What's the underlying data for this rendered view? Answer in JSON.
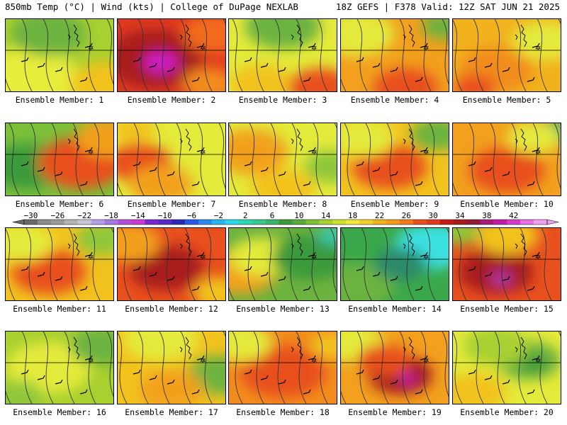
{
  "header": {
    "left": "850mb Temp (°C) | Wind (kts) | College of DuPage NEXLAB",
    "right": "18Z GEFS | F378 Valid: 12Z SAT JUN 21 2025"
  },
  "members": [
    {
      "label": "Ensemble Member: 1",
      "field": {
        "base": "#a8d030",
        "blobs": [
          [
            "#e8ec3a",
            0.2,
            0.85,
            0.5
          ],
          [
            "#f2c21e",
            0.95,
            0.9,
            0.35
          ],
          [
            "#6db33f",
            0.4,
            0.2,
            0.35
          ]
        ]
      }
    },
    {
      "label": "Ensemble Member: 2",
      "field": {
        "base": "#e03a20",
        "blobs": [
          [
            "#a81a1a",
            0.35,
            0.55,
            0.45
          ],
          [
            "#d21bc8",
            0.4,
            0.6,
            0.16
          ],
          [
            "#f26a1e",
            0.9,
            0.2,
            0.3
          ],
          [
            "#f28c1e",
            0.85,
            0.9,
            0.25
          ]
        ]
      }
    },
    {
      "label": "Ensemble Member: 3",
      "field": {
        "base": "#e4ea3a",
        "blobs": [
          [
            "#6db33f",
            0.5,
            0.1,
            0.35
          ],
          [
            "#f2c21e",
            0.3,
            0.9,
            0.3
          ],
          [
            "#e8501e",
            0.85,
            0.95,
            0.3
          ]
        ]
      }
    },
    {
      "label": "Ensemble Member: 4",
      "field": {
        "base": "#f2a01e",
        "blobs": [
          [
            "#e4ea3a",
            0.15,
            0.2,
            0.35
          ],
          [
            "#e8501e",
            0.6,
            0.95,
            0.3
          ],
          [
            "#6db33f",
            0.95,
            0.1,
            0.2
          ]
        ]
      }
    },
    {
      "label": "Ensemble Member: 5",
      "field": {
        "base": "#f2b21e",
        "blobs": [
          [
            "#f28c1e",
            0.4,
            0.7,
            0.35
          ],
          [
            "#e4ea3a",
            0.85,
            0.3,
            0.3
          ],
          [
            "#e8501e",
            0.2,
            0.95,
            0.2
          ]
        ]
      }
    },
    {
      "label": "Ensemble Member: 6",
      "field": {
        "base": "#7cc03a",
        "blobs": [
          [
            "#3a9a3a",
            0.2,
            0.6,
            0.35
          ],
          [
            "#e8501e",
            0.7,
            0.55,
            0.4
          ],
          [
            "#f2a01e",
            0.95,
            0.2,
            0.3
          ]
        ]
      }
    },
    {
      "label": "Ensemble Member: 7",
      "field": {
        "base": "#e4ea3a",
        "blobs": [
          [
            "#e8501e",
            0.2,
            0.55,
            0.3
          ],
          [
            "#f2a01e",
            0.4,
            0.85,
            0.3
          ],
          [
            "#f2c21e",
            0.15,
            0.1,
            0.2
          ]
        ]
      }
    },
    {
      "label": "Ensemble Member: 8",
      "field": {
        "base": "#e4ea3a",
        "blobs": [
          [
            "#f2a01e",
            0.2,
            0.4,
            0.35
          ],
          [
            "#f2c21e",
            0.5,
            0.9,
            0.3
          ],
          [
            "#8fc83a",
            0.95,
            0.6,
            0.25
          ]
        ]
      }
    },
    {
      "label": "Ensemble Member: 9",
      "field": {
        "base": "#f2c21e",
        "blobs": [
          [
            "#e8501e",
            0.45,
            0.6,
            0.35
          ],
          [
            "#e4ea3a",
            0.2,
            0.2,
            0.3
          ],
          [
            "#6db33f",
            0.9,
            0.15,
            0.25
          ]
        ]
      }
    },
    {
      "label": "Ensemble Member: 10",
      "field": {
        "base": "#f2a01e",
        "blobs": [
          [
            "#e8501e",
            0.5,
            0.65,
            0.35
          ],
          [
            "#3aa86a",
            0.95,
            0.1,
            0.2
          ],
          [
            "#e4ea3a",
            0.75,
            0.2,
            0.25
          ]
        ]
      }
    },
    {
      "label": "Ensemble Member: 11",
      "field": {
        "base": "#f2c21e",
        "blobs": [
          [
            "#e8501e",
            0.4,
            0.6,
            0.35
          ],
          [
            "#e4ea3a",
            0.15,
            0.2,
            0.3
          ],
          [
            "#8fc83a",
            0.9,
            0.15,
            0.25
          ]
        ]
      }
    },
    {
      "label": "Ensemble Member: 12",
      "field": {
        "base": "#e8501e",
        "blobs": [
          [
            "#a81a1a",
            0.45,
            0.55,
            0.35
          ],
          [
            "#f2a01e",
            0.1,
            0.2,
            0.3
          ],
          [
            "#f2c21e",
            0.95,
            0.9,
            0.25
          ]
        ]
      }
    },
    {
      "label": "Ensemble Member: 13",
      "field": {
        "base": "#6db33f",
        "blobs": [
          [
            "#f2a01e",
            0.1,
            0.6,
            0.35
          ],
          [
            "#e4ea3a",
            0.3,
            0.4,
            0.3
          ],
          [
            "#3a9a3a",
            0.75,
            0.4,
            0.35
          ],
          [
            "#3ac8a8",
            0.97,
            0.1,
            0.15
          ]
        ]
      }
    },
    {
      "label": "Ensemble Member: 14",
      "field": {
        "base": "#3aa84a",
        "blobs": [
          [
            "#3ae0e0",
            0.85,
            0.25,
            0.35
          ],
          [
            "#6db33f",
            0.15,
            0.8,
            0.35
          ],
          [
            "#2a8a6a",
            0.55,
            0.5,
            0.25
          ]
        ]
      }
    },
    {
      "label": "Ensemble Member: 15",
      "field": {
        "base": "#e8501e",
        "blobs": [
          [
            "#a81a1a",
            0.4,
            0.6,
            0.35
          ],
          [
            "#b43ab4",
            0.45,
            0.7,
            0.1
          ],
          [
            "#f2c21e",
            0.5,
            0.1,
            0.3
          ],
          [
            "#8fc83a",
            0.05,
            0.05,
            0.2
          ]
        ]
      }
    },
    {
      "label": "Ensemble Member: 16",
      "field": {
        "base": "#a8d030",
        "blobs": [
          [
            "#e4ea3a",
            0.4,
            0.5,
            0.4
          ],
          [
            "#6db33f",
            0.9,
            0.2,
            0.3
          ],
          [
            "#8fc83a",
            0.1,
            0.9,
            0.25
          ]
        ]
      }
    },
    {
      "label": "Ensemble Member: 17",
      "field": {
        "base": "#f2c21e",
        "blobs": [
          [
            "#e4ea3a",
            0.4,
            0.1,
            0.35
          ],
          [
            "#6db33f",
            0.95,
            0.6,
            0.3
          ],
          [
            "#f2a01e",
            0.5,
            0.8,
            0.3
          ]
        ]
      }
    },
    {
      "label": "Ensemble Member: 18",
      "field": {
        "base": "#f28c1e",
        "blobs": [
          [
            "#e8501e",
            0.5,
            0.55,
            0.4
          ],
          [
            "#e4ea3a",
            0.1,
            0.15,
            0.3
          ],
          [
            "#f2c21e",
            0.95,
            0.2,
            0.2
          ]
        ]
      }
    },
    {
      "label": "Ensemble Member: 19",
      "field": {
        "base": "#f2a01e",
        "blobs": [
          [
            "#a81a1a",
            0.55,
            0.6,
            0.3
          ],
          [
            "#d21bc8",
            0.62,
            0.65,
            0.07
          ],
          [
            "#e4ea3a",
            0.1,
            0.15,
            0.3
          ],
          [
            "#e8501e",
            0.4,
            0.4,
            0.25
          ]
        ]
      }
    },
    {
      "label": "Ensemble Member: 20",
      "field": {
        "base": "#e4ea3a",
        "blobs": [
          [
            "#6db33f",
            0.7,
            0.4,
            0.3
          ],
          [
            "#3a9a3a",
            0.75,
            0.45,
            0.13
          ],
          [
            "#f2c21e",
            0.2,
            0.85,
            0.3
          ],
          [
            "#a8d030",
            0.4,
            0.2,
            0.3
          ]
        ]
      }
    }
  ],
  "colorbar": {
    "labels": [
      "−30",
      "−26",
      "−22",
      "−18",
      "−14",
      "−10",
      "−6",
      "−2",
      "2",
      "6",
      "10",
      "14",
      "18",
      "22",
      "26",
      "30",
      "34",
      "38",
      "42"
    ],
    "colors": [
      "#6a6a6a",
      "#8a8a8a",
      "#9a9a9a",
      "#b4b4b4",
      "#c8c8d8",
      "#b4a0e8",
      "#a878e0",
      "#b050d8",
      "#c83ad0",
      "#7a28d0",
      "#5a2ac8",
      "#2a2ab4",
      "#2a5ae8",
      "#2a8af0",
      "#2ab4f0",
      "#2ad8e8",
      "#2ad8b4",
      "#3ac890",
      "#3ab46a",
      "#3a9a3a",
      "#58aa3a",
      "#7cc03a",
      "#a8d030",
      "#d0e030",
      "#f0e83a",
      "#f2d02a",
      "#f2b21e",
      "#f29a1e",
      "#f27a1e",
      "#e8501e",
      "#e03a20",
      "#c81a1a",
      "#a81a1a",
      "#901a3a",
      "#a81a7a",
      "#c81aa8",
      "#d83ac8",
      "#e870e0",
      "#f0a0f0"
    ]
  }
}
